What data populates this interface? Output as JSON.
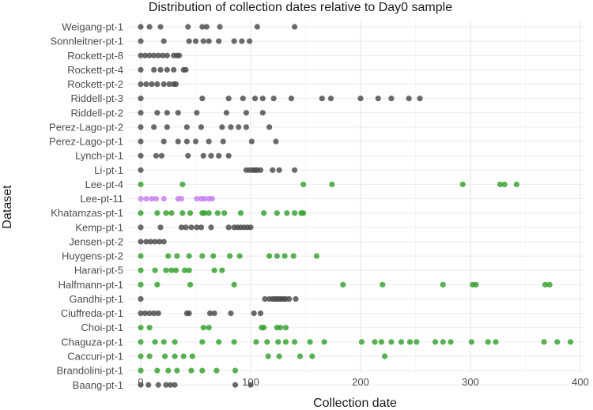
{
  "chart_data": {
    "type": "scatter",
    "title": "Distribution of collection dates relative to Day0 sample",
    "xlabel": "Collection date",
    "ylabel": "Dataset",
    "xlim": [
      -12,
      405
    ],
    "xticks": [
      0,
      100,
      200,
      300,
      400
    ],
    "grid": true,
    "legend": "none",
    "colors": {
      "dark": "#4a4a4a",
      "green": "#33a02c",
      "purple": "#c77cf0"
    },
    "series": [
      {
        "name": "Weigang-pt-1",
        "color": "dark",
        "values": [
          0,
          8,
          18,
          43,
          56,
          60,
          72,
          106,
          140
        ]
      },
      {
        "name": "Sonnleitner-pt-1",
        "color": "dark",
        "values": [
          0,
          21,
          44,
          50,
          57,
          62,
          71,
          85,
          92,
          99
        ]
      },
      {
        "name": "Rockett-pt-8",
        "color": "dark",
        "values": [
          0,
          4,
          8,
          12,
          16,
          20,
          24,
          30,
          33,
          35
        ]
      },
      {
        "name": "Rockett-pt-4",
        "color": "dark",
        "values": [
          0,
          12,
          18,
          24,
          30,
          39,
          41
        ]
      },
      {
        "name": "Rockett-pt-2",
        "color": "dark",
        "values": [
          0,
          5,
          10,
          15,
          21,
          26,
          30,
          32
        ]
      },
      {
        "name": "Riddell-pt-3",
        "color": "dark",
        "values": [
          0,
          56,
          80,
          93,
          104,
          111,
          121,
          137,
          165,
          173,
          200,
          216,
          228,
          244,
          254
        ]
      },
      {
        "name": "Riddell-pt-2",
        "color": "dark",
        "values": [
          0,
          15,
          24,
          34,
          51,
          78,
          96,
          111
        ]
      },
      {
        "name": "Perez-Lago-pt-2",
        "color": "dark",
        "values": [
          0,
          12,
          24,
          42,
          55,
          74,
          82,
          89,
          96,
          117
        ]
      },
      {
        "name": "Perez-Lago-pt-1",
        "color": "dark",
        "values": [
          0,
          21,
          34,
          42,
          50,
          62,
          75,
          101,
          123
        ]
      },
      {
        "name": "Lynch-pt-1",
        "color": "dark",
        "values": [
          0,
          14,
          19,
          43,
          57,
          64,
          71,
          80
        ]
      },
      {
        "name": "Li-pt-1",
        "color": "dark",
        "values": [
          0,
          96,
          99,
          102,
          104,
          106,
          109,
          120,
          126,
          140
        ]
      },
      {
        "name": "Lee-pt-4",
        "color": "green",
        "values": [
          0,
          38,
          148,
          174,
          293,
          327,
          331,
          342
        ]
      },
      {
        "name": "Lee-pt-11",
        "color": "purple",
        "values": [
          0,
          5,
          10,
          14,
          21,
          34,
          37,
          51,
          55,
          58,
          62,
          65
        ]
      },
      {
        "name": "Khatamzas-pt-1",
        "color": "green",
        "values": [
          0,
          15,
          23,
          28,
          38,
          45,
          56,
          58,
          62,
          70,
          76,
          91,
          112,
          124,
          133,
          140,
          146,
          148
        ]
      },
      {
        "name": "Kemp-pt-1",
        "color": "dark",
        "values": [
          0,
          18,
          37,
          41,
          46,
          51,
          55,
          64,
          80,
          85,
          88,
          91,
          94,
          97,
          100
        ]
      },
      {
        "name": "Jensen-pt-2",
        "color": "dark",
        "values": [
          0,
          5,
          9,
          13,
          17,
          21
        ]
      },
      {
        "name": "Huygens-pt-2",
        "color": "green",
        "values": [
          0,
          25,
          33,
          44,
          56,
          66,
          81,
          90,
          117,
          124,
          131,
          139,
          160
        ]
      },
      {
        "name": "Harari-pt-5",
        "color": "green",
        "values": [
          0,
          13,
          23,
          28,
          32,
          40,
          44,
          67,
          74
        ]
      },
      {
        "name": "Halfmann-pt-1",
        "color": "green",
        "values": [
          0,
          15,
          45,
          85,
          184,
          220,
          275,
          302,
          305,
          368,
          372
        ]
      },
      {
        "name": "Gandhi-pt-1",
        "color": "dark",
        "values": [
          0,
          113,
          117,
          120,
          122,
          124,
          126,
          128,
          130,
          132,
          135,
          141
        ]
      },
      {
        "name": "Ciuffreda-pt-1",
        "color": "dark",
        "values": [
          0,
          4,
          8,
          12,
          16,
          42,
          44,
          63,
          67,
          82,
          103,
          109
        ]
      },
      {
        "name": "Choi-pt-1",
        "color": "green",
        "values": [
          0,
          8,
          57,
          62,
          110,
          112,
          124,
          127,
          132
        ]
      },
      {
        "name": "Chaguza-pt-1",
        "color": "green",
        "values": [
          0,
          13,
          21,
          31,
          56,
          71,
          85,
          105,
          115,
          125,
          132,
          140,
          154,
          167,
          201,
          213,
          219,
          228,
          237,
          245,
          251,
          268,
          275,
          282,
          301,
          316,
          323,
          367,
          379,
          391
        ]
      },
      {
        "name": "Caccuri-pt-1",
        "color": "green",
        "values": [
          0,
          8,
          22,
          31,
          39,
          47,
          116,
          126,
          145,
          156,
          222
        ]
      },
      {
        "name": "Brandolini-pt-1",
        "color": "green",
        "values": [
          0,
          15,
          25,
          33,
          46,
          56,
          69,
          86
        ]
      },
      {
        "name": "Baang-pt-1",
        "color": "dark",
        "values": [
          0,
          7,
          16,
          23,
          27,
          31,
          86,
          100
        ]
      }
    ]
  }
}
